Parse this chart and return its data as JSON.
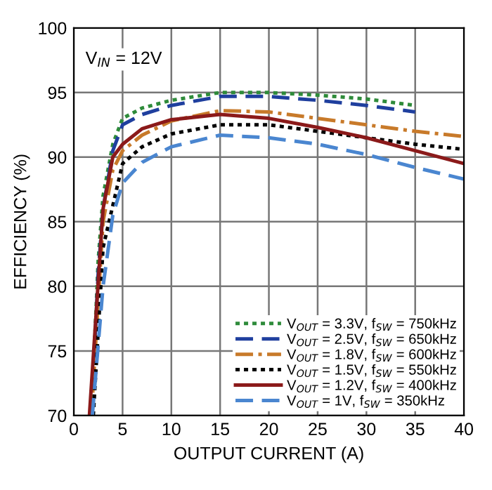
{
  "chart_data": {
    "type": "line",
    "xlabel": "OUTPUT CURRENT (A)",
    "ylabel": "EFFICIENCY (%)",
    "annotations": [
      "V$_{IN}$ = 12V"
    ],
    "xlim": [
      0,
      40
    ],
    "xticks": [
      0,
      5,
      10,
      15,
      20,
      25,
      30,
      35,
      40
    ],
    "ylim": [
      70,
      100
    ],
    "yticks": [
      70,
      75,
      80,
      85,
      90,
      95,
      100
    ],
    "grid": true,
    "legend": "bottom right",
    "marker": "none",
    "series": [
      {
        "name": "V$_{OUT}$ = 3.3V, f$_{SW}$ = 750kHz",
        "color": "#2e8b3a",
        "line_style": "dotted",
        "x": [
          1.8,
          2.5,
          3,
          4,
          5,
          7,
          10,
          15,
          20,
          25,
          30,
          35
        ],
        "values": [
          70,
          82,
          87,
          91,
          93,
          93.8,
          94.4,
          95,
          95,
          94.8,
          94.5,
          94
        ]
      },
      {
        "name": "V$_{OUT}$ = 2.5V, f$_{SW}$ = 650kHz",
        "color": "#1f3f9e",
        "line_style": "dashed",
        "x": [
          1.8,
          2.5,
          3,
          4,
          5,
          7,
          10,
          15,
          20,
          25,
          30,
          35
        ],
        "values": [
          70,
          81,
          86,
          90.5,
          92.5,
          93.3,
          94,
          94.7,
          94.7,
          94.4,
          94,
          93.5
        ]
      },
      {
        "name": "V$_{OUT}$ = 1.8V, f$_{SW}$ = 600kHz",
        "color": "#c87a2a",
        "line_style": "dashdot",
        "x": [
          1.8,
          3,
          4,
          5,
          7,
          10,
          15,
          20,
          25,
          30,
          35,
          40
        ],
        "values": [
          70,
          85,
          89,
          90.5,
          91.7,
          92.8,
          93.6,
          93.5,
          93,
          92.5,
          92,
          91.6
        ]
      },
      {
        "name": "V$_{OUT}$ = 1.5V, f$_{SW}$ = 550kHz",
        "color": "#000000",
        "line_style": "dotted",
        "x": [
          2,
          3,
          5,
          7,
          10,
          15,
          20,
          25,
          30,
          35,
          40
        ],
        "values": [
          70,
          83,
          89.5,
          90.8,
          91.8,
          92.5,
          92.5,
          92,
          91.5,
          91,
          90.6
        ]
      },
      {
        "name": "V$_{OUT}$ = 1.2V, f$_{SW}$ = 400kHz",
        "color": "#8b1a1a",
        "line_style": "solid",
        "x": [
          1.6,
          3,
          4,
          5,
          7,
          10,
          15,
          20,
          25,
          30,
          35,
          40
        ],
        "values": [
          70,
          86,
          90,
          91,
          92.2,
          92.9,
          93.3,
          93,
          92.3,
          91.5,
          90.5,
          89.5
        ]
      },
      {
        "name": "V$_{OUT}$ = 1V, f$_{SW}$ = 350kHz",
        "color": "#4a86d0",
        "line_style": "dashed",
        "x": [
          1.9,
          3,
          4,
          5,
          7,
          10,
          15,
          20,
          25,
          30,
          35,
          40
        ],
        "values": [
          70,
          80,
          85.5,
          88,
          89.6,
          90.8,
          91.7,
          91.5,
          91,
          90.2,
          89.2,
          88.3
        ]
      }
    ]
  }
}
